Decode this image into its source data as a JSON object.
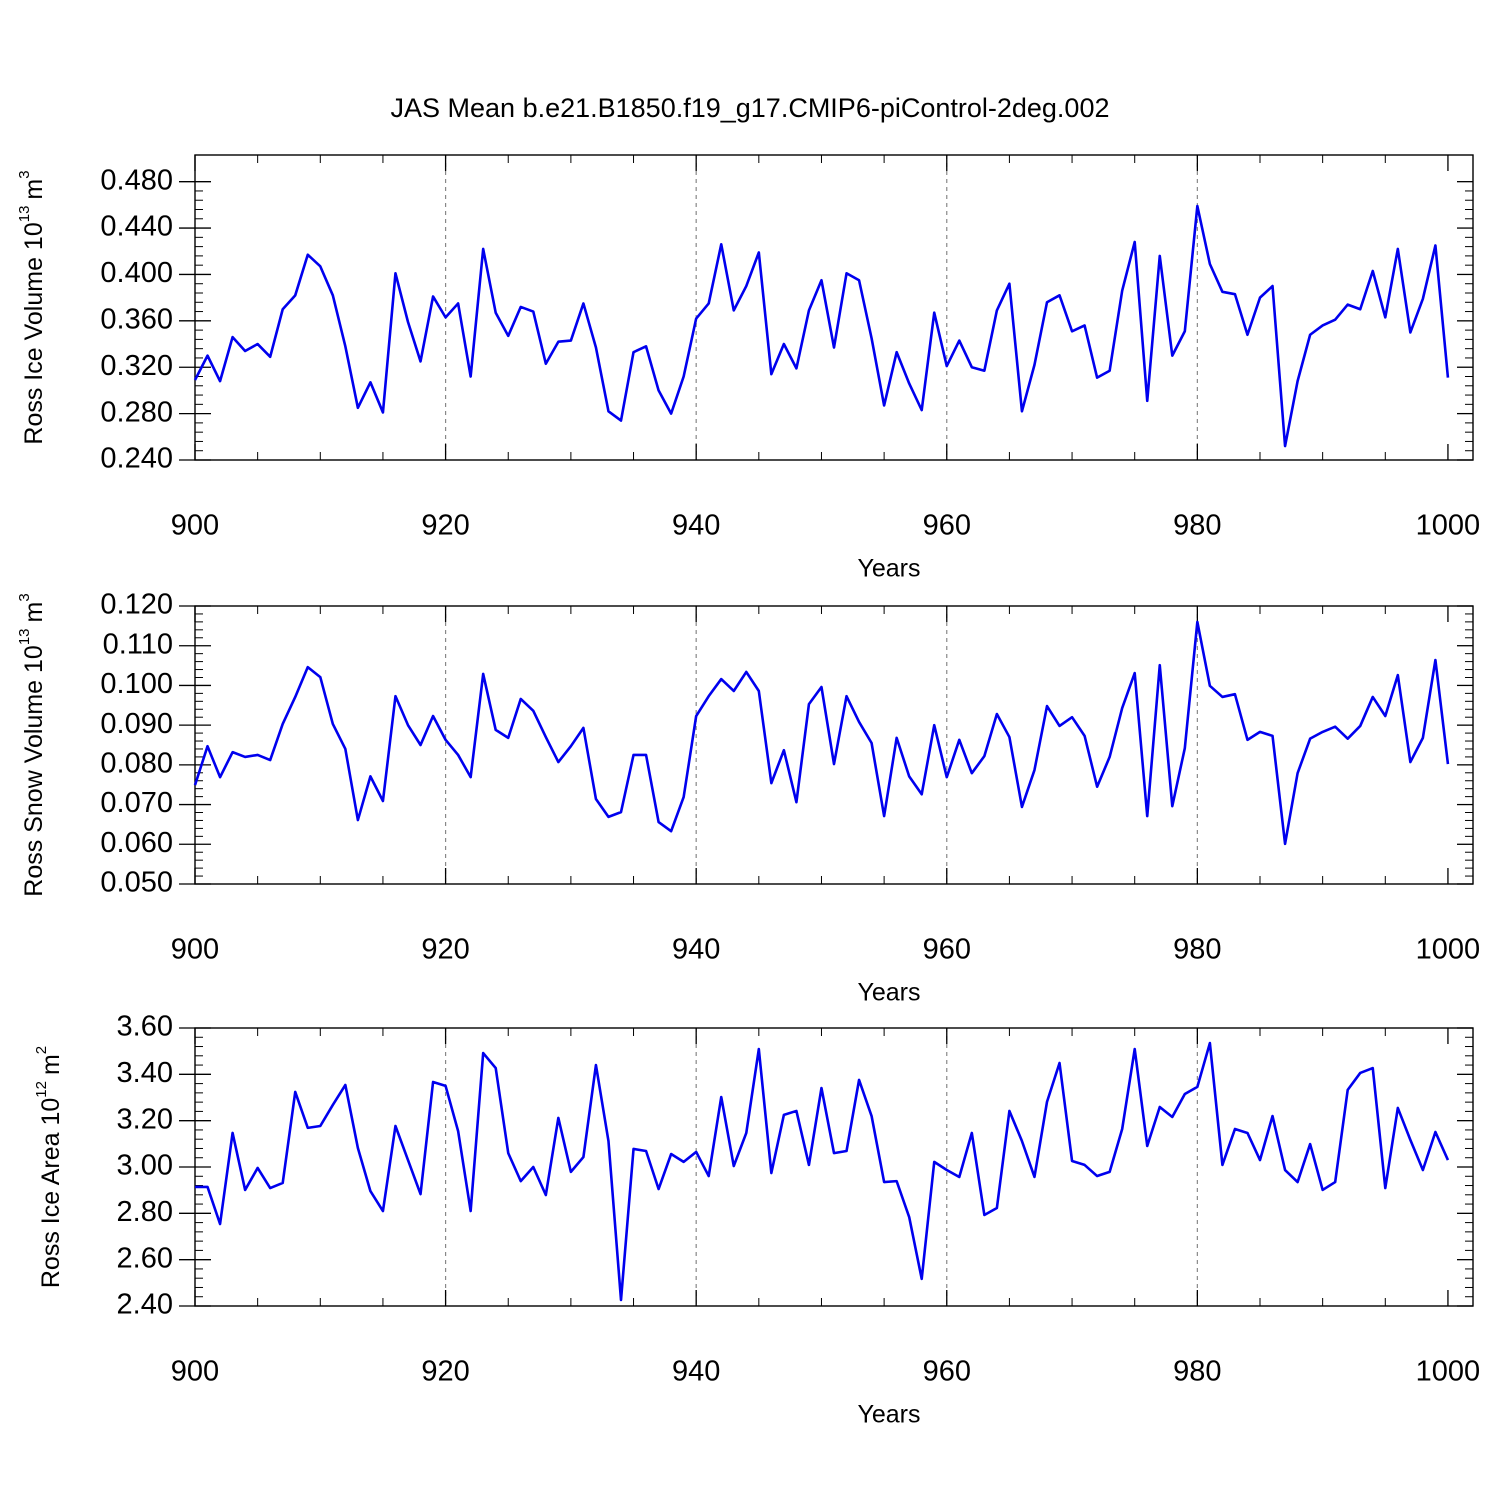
{
  "chart_data": [
    {
      "type": "line",
      "title": "JAS Mean b.e21.B1850.f19_g17.CMIP6-piControl-2deg.002",
      "xlabel": "Years",
      "ylabel": {
        "text": "Ross Ice Volume 10",
        "exp": "13",
        "unit": "m",
        "unit_exp": "3"
      },
      "xlim": [
        900,
        1002
      ],
      "ylim": [
        0.24,
        0.503
      ],
      "xticks": [
        900,
        920,
        940,
        960,
        980,
        1000
      ],
      "yticks": [
        {
          "value": 0.24,
          "label": "0.240"
        },
        {
          "value": 0.28,
          "label": "0.280"
        },
        {
          "value": 0.32,
          "label": "0.320"
        },
        {
          "value": 0.36,
          "label": "0.360"
        },
        {
          "value": 0.4,
          "label": "0.400"
        },
        {
          "value": 0.44,
          "label": "0.440"
        },
        {
          "value": 0.48,
          "label": "0.480"
        }
      ],
      "grid": true,
      "color": "#0000ee",
      "x": [
        900,
        901,
        902,
        903,
        904,
        905,
        906,
        907,
        908,
        909,
        910,
        911,
        912,
        913,
        914,
        915,
        916,
        917,
        918,
        919,
        920,
        921,
        922,
        923,
        924,
        925,
        926,
        927,
        928,
        929,
        930,
        931,
        932,
        933,
        934,
        935,
        936,
        937,
        938,
        939,
        940,
        941,
        942,
        943,
        944,
        945,
        946,
        947,
        948,
        949,
        950,
        951,
        952,
        953,
        954,
        955,
        956,
        957,
        958,
        959,
        960,
        961,
        962,
        963,
        964,
        965,
        966,
        967,
        968,
        969,
        970,
        971,
        972,
        973,
        974,
        975,
        976,
        977,
        978,
        979,
        980,
        981,
        982,
        983,
        984,
        985,
        986,
        987,
        988,
        989,
        990,
        991,
        992,
        993,
        994,
        995,
        996,
        997,
        998,
        999,
        1000
      ],
      "values": [
        0.309,
        0.33,
        0.308,
        0.346,
        0.334,
        0.34,
        0.329,
        0.37,
        0.382,
        0.417,
        0.407,
        0.382,
        0.338,
        0.285,
        0.307,
        0.281,
        0.401,
        0.359,
        0.325,
        0.381,
        0.363,
        0.375,
        0.312,
        0.422,
        0.367,
        0.347,
        0.372,
        0.368,
        0.323,
        0.342,
        0.343,
        0.375,
        0.337,
        0.282,
        0.274,
        0.333,
        0.338,
        0.3,
        0.28,
        0.312,
        0.362,
        0.375,
        0.426,
        0.369,
        0.39,
        0.419,
        0.314,
        0.34,
        0.319,
        0.369,
        0.395,
        0.337,
        0.401,
        0.395,
        0.345,
        0.287,
        0.333,
        0.306,
        0.283,
        0.367,
        0.321,
        0.343,
        0.32,
        0.317,
        0.369,
        0.392,
        0.282,
        0.322,
        0.376,
        0.382,
        0.351,
        0.356,
        0.311,
        0.317,
        0.386,
        0.428,
        0.291,
        0.416,
        0.33,
        0.351,
        0.459,
        0.409,
        0.385,
        0.383,
        0.348,
        0.38,
        0.39,
        0.252,
        0.308,
        0.348,
        0.356,
        0.361,
        0.374,
        0.37,
        0.403,
        0.363,
        0.422,
        0.35,
        0.379,
        0.425,
        0.311
      ]
    },
    {
      "type": "line",
      "xlabel": "Years",
      "ylabel": {
        "text": "Ross Snow Volume 10",
        "exp": "13",
        "unit": "m",
        "unit_exp": "3"
      },
      "xlim": [
        900,
        1002
      ],
      "ylim": [
        0.05,
        0.12
      ],
      "xticks": [
        900,
        920,
        940,
        960,
        980,
        1000
      ],
      "yticks": [
        {
          "value": 0.05,
          "label": "0.050"
        },
        {
          "value": 0.06,
          "label": "0.060"
        },
        {
          "value": 0.07,
          "label": "0.070"
        },
        {
          "value": 0.08,
          "label": "0.080"
        },
        {
          "value": 0.09,
          "label": "0.090"
        },
        {
          "value": 0.1,
          "label": "0.100"
        },
        {
          "value": 0.11,
          "label": "0.110"
        },
        {
          "value": 0.12,
          "label": "0.120"
        }
      ],
      "grid": true,
      "color": "#0000ee",
      "x": [
        900,
        901,
        902,
        903,
        904,
        905,
        906,
        907,
        908,
        909,
        910,
        911,
        912,
        913,
        914,
        915,
        916,
        917,
        918,
        919,
        920,
        921,
        922,
        923,
        924,
        925,
        926,
        927,
        928,
        929,
        930,
        931,
        932,
        933,
        934,
        935,
        936,
        937,
        938,
        939,
        940,
        941,
        942,
        943,
        944,
        945,
        946,
        947,
        948,
        949,
        950,
        951,
        952,
        953,
        954,
        955,
        956,
        957,
        958,
        959,
        960,
        961,
        962,
        963,
        964,
        965,
        966,
        967,
        968,
        969,
        970,
        971,
        972,
        973,
        974,
        975,
        976,
        977,
        978,
        979,
        980,
        981,
        982,
        983,
        984,
        985,
        986,
        987,
        988,
        989,
        990,
        991,
        992,
        993,
        994,
        995,
        996,
        997,
        998,
        999,
        1000
      ],
      "values": [
        0.0749,
        0.0847,
        0.0769,
        0.0832,
        0.082,
        0.0825,
        0.0812,
        0.0903,
        0.0971,
        0.1046,
        0.1021,
        0.0903,
        0.084,
        0.0661,
        0.0771,
        0.0709,
        0.0973,
        0.09,
        0.085,
        0.0923,
        0.0863,
        0.0825,
        0.0769,
        0.1029,
        0.0888,
        0.0868,
        0.0966,
        0.0936,
        0.087,
        0.0807,
        0.0847,
        0.0893,
        0.0714,
        0.0669,
        0.0681,
        0.0825,
        0.0825,
        0.0656,
        0.0633,
        0.0719,
        0.0923,
        0.0973,
        0.1016,
        0.0986,
        0.1034,
        0.0986,
        0.0754,
        0.0837,
        0.0706,
        0.0953,
        0.0996,
        0.0802,
        0.0973,
        0.0908,
        0.0855,
        0.0671,
        0.0868,
        0.0771,
        0.0726,
        0.09,
        0.0769,
        0.0863,
        0.0779,
        0.0822,
        0.0928,
        0.087,
        0.0694,
        0.0787,
        0.0948,
        0.0898,
        0.092,
        0.0873,
        0.0745,
        0.082,
        0.0943,
        0.1031,
        0.0671,
        0.1051,
        0.0696,
        0.0842,
        0.116,
        0.0999,
        0.0971,
        0.0978,
        0.0863,
        0.0883,
        0.0873,
        0.0601,
        0.0779,
        0.0866,
        0.0883,
        0.0896,
        0.0866,
        0.0898,
        0.0971,
        0.0923,
        0.1026,
        0.0807,
        0.0868,
        0.1064,
        0.0802
      ]
    },
    {
      "type": "line",
      "xlabel": "Years",
      "ylabel": {
        "text": "Ross Ice Area 10",
        "exp": "12",
        "unit": "m",
        "unit_exp": "2"
      },
      "xlim": [
        900,
        1002
      ],
      "ylim": [
        2.4,
        3.6
      ],
      "xticks": [
        900,
        920,
        940,
        960,
        980,
        1000
      ],
      "yticks": [
        {
          "value": 2.4,
          "label": "2.40"
        },
        {
          "value": 2.6,
          "label": "2.60"
        },
        {
          "value": 2.8,
          "label": "2.80"
        },
        {
          "value": 3.0,
          "label": "3.00"
        },
        {
          "value": 3.2,
          "label": "3.20"
        },
        {
          "value": 3.4,
          "label": "3.40"
        },
        {
          "value": 3.6,
          "label": "3.60"
        }
      ],
      "grid": true,
      "color": "#0000ee",
      "x": [
        900,
        901,
        902,
        903,
        904,
        905,
        906,
        907,
        908,
        909,
        910,
        911,
        912,
        913,
        914,
        915,
        916,
        917,
        918,
        919,
        920,
        921,
        922,
        923,
        924,
        925,
        926,
        927,
        928,
        929,
        930,
        931,
        932,
        933,
        934,
        935,
        936,
        937,
        938,
        939,
        940,
        941,
        942,
        943,
        944,
        945,
        946,
        947,
        948,
        949,
        950,
        951,
        952,
        953,
        954,
        955,
        956,
        957,
        958,
        959,
        960,
        961,
        962,
        963,
        964,
        965,
        966,
        967,
        968,
        969,
        970,
        971,
        972,
        973,
        974,
        975,
        976,
        977,
        978,
        979,
        980,
        981,
        982,
        983,
        984,
        985,
        986,
        987,
        988,
        989,
        990,
        991,
        992,
        993,
        994,
        995,
        996,
        997,
        998,
        999,
        1000
      ],
      "values": [
        2.914,
        2.914,
        2.754,
        3.147,
        2.901,
        2.996,
        2.909,
        2.931,
        3.324,
        3.169,
        3.177,
        3.268,
        3.354,
        3.082,
        2.896,
        2.81,
        3.177,
        3.03,
        2.883,
        3.367,
        3.35,
        3.155,
        2.81,
        3.492,
        3.427,
        3.06,
        2.939,
        3.0,
        2.879,
        3.212,
        2.979,
        3.043,
        3.44,
        3.112,
        2.426,
        3.078,
        3.069,
        2.905,
        3.056,
        3.022,
        3.065,
        2.961,
        3.302,
        3.004,
        3.147,
        3.509,
        2.974,
        3.225,
        3.242,
        3.009,
        3.341,
        3.06,
        3.069,
        3.376,
        3.22,
        2.935,
        2.939,
        2.784,
        2.517,
        3.022,
        2.987,
        2.957,
        3.147,
        2.793,
        2.823,
        3.242,
        3.112,
        2.957,
        3.281,
        3.449,
        3.026,
        3.009,
        2.961,
        2.979,
        3.164,
        3.509,
        3.091,
        3.259,
        3.216,
        3.315,
        3.346,
        3.535,
        3.009,
        3.164,
        3.147,
        3.03,
        3.22,
        2.987,
        2.935,
        3.099,
        2.901,
        2.935,
        3.333,
        3.406,
        3.427,
        2.909,
        3.255,
        3.117,
        2.987,
        3.151,
        3.03
      ]
    }
  ]
}
